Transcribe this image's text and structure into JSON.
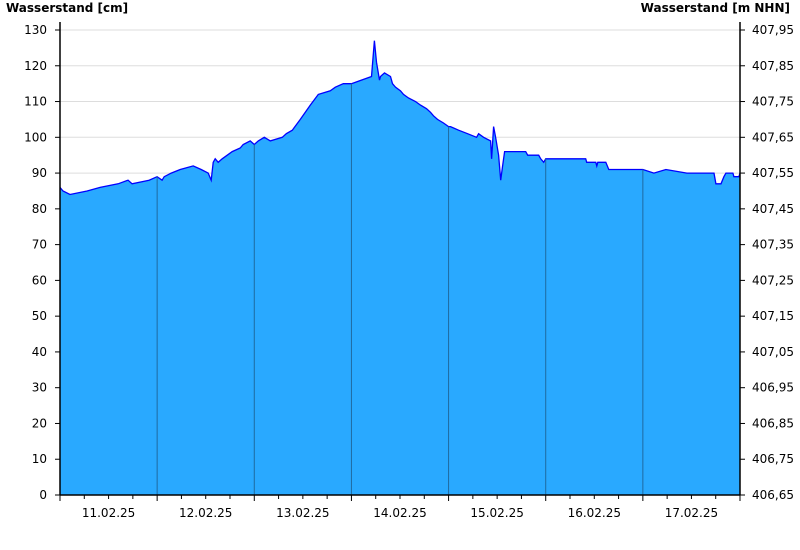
{
  "chart_data": {
    "type": "area",
    "ylabel_left": "Wasserstand [cm]",
    "ylabel_right": "Wasserstand [m NHN]",
    "ylim": [
      0,
      130
    ],
    "yticks": [
      0,
      10,
      20,
      30,
      40,
      50,
      60,
      70,
      80,
      90,
      100,
      110,
      120,
      130
    ],
    "right_offset_m": 406.65,
    "right_ticks": [
      "406,65",
      "406,75",
      "406,85",
      "406,95",
      "407,05",
      "407,15",
      "407,25",
      "407,35",
      "407,45",
      "407,55",
      "407,65",
      "407,75",
      "407,85",
      "407,95"
    ],
    "xlim": [
      "11.02.25 00:00",
      "18.02.25 00:00"
    ],
    "xtick_labels": [
      "11.02.25",
      "12.02.25",
      "13.02.25",
      "14.02.25",
      "15.02.25",
      "16.02.25",
      "17.02.25"
    ],
    "grid": true,
    "colors": {
      "fill": "#29a9ff",
      "line": "#0000ff",
      "day_line": "#1f6aa0",
      "grid": "#dddddd"
    },
    "series": [
      {
        "points": [
          [
            "11.02.25 00:00",
            86
          ],
          [
            "11.02.25 00:45",
            85
          ],
          [
            "11.02.25 02:28",
            84
          ],
          [
            "11.02.25 06:41",
            85
          ],
          [
            "11.02.25 09:54",
            86
          ],
          [
            "11.02.25 14:21",
            87
          ],
          [
            "11.02.25 16:49",
            88
          ],
          [
            "11.02.25 17:49",
            87
          ],
          [
            "11.02.25 22:01",
            88
          ],
          [
            "12.02.25 00:00",
            89
          ],
          [
            "12.02.25 01:14",
            88
          ],
          [
            "12.02.25 01:44",
            89
          ],
          [
            "12.02.25 03:28",
            90
          ],
          [
            "12.02.25 05:42",
            91
          ],
          [
            "12.02.25 08:55",
            92
          ],
          [
            "12.02.25 10:53",
            91
          ],
          [
            "12.02.25 12:37",
            90
          ],
          [
            "12.02.25 13:21",
            88
          ],
          [
            "12.02.25 13:51",
            93
          ],
          [
            "12.02.25 14:21",
            94
          ],
          [
            "12.02.25 15:05",
            93
          ],
          [
            "12.02.25 16:04",
            94
          ],
          [
            "12.02.25 18:32",
            96
          ],
          [
            "12.02.25 20:31",
            97
          ],
          [
            "12.02.25 21:15",
            98
          ],
          [
            "12.02.25 23:00",
            99
          ],
          [
            "13.02.25 00:00",
            98
          ],
          [
            "13.02.25 00:59",
            99
          ],
          [
            "13.02.25 02:28",
            100
          ],
          [
            "13.02.25 03:57",
            99
          ],
          [
            "13.02.25 06:55",
            100
          ],
          [
            "13.02.25 07:54",
            101
          ],
          [
            "13.02.25 09:23",
            102
          ],
          [
            "13.02.25 11:22",
            105
          ],
          [
            "13.02.25 13:50",
            109
          ],
          [
            "13.02.25 15:49",
            112
          ],
          [
            "13.02.25 18:47",
            113
          ],
          [
            "13.02.25 20:01",
            114
          ],
          [
            "13.02.25 21:59",
            115
          ],
          [
            "14.02.25 00:00",
            115
          ],
          [
            "14.02.25 02:28",
            116
          ],
          [
            "14.02.25 04:57",
            117
          ],
          [
            "14.02.25 05:41",
            127
          ],
          [
            "14.02.25 06:11",
            121
          ],
          [
            "14.02.25 06:56",
            116
          ],
          [
            "14.02.25 07:11",
            117
          ],
          [
            "14.02.25 08:10",
            118
          ],
          [
            "14.02.25 09:39",
            117
          ],
          [
            "14.02.25 10:09",
            115
          ],
          [
            "14.02.25 10:53",
            114
          ],
          [
            "14.02.25 12:07",
            113
          ],
          [
            "14.02.25 12:52",
            112
          ],
          [
            "14.02.25 14:06",
            111
          ],
          [
            "14.02.25 15:50",
            110
          ],
          [
            "14.02.25 17:04",
            109
          ],
          [
            "14.02.25 18:33",
            108
          ],
          [
            "14.02.25 19:32",
            107
          ],
          [
            "14.02.25 20:17",
            106
          ],
          [
            "14.02.25 21:16",
            105
          ],
          [
            "14.02.25 22:45",
            104
          ],
          [
            "15.02.25 00:00",
            103
          ],
          [
            "15.02.25 00:29",
            103
          ],
          [
            "15.02.25 02:28",
            102
          ],
          [
            "15.02.25 04:42",
            101
          ],
          [
            "15.02.25 06:55",
            100
          ],
          [
            "15.02.25 07:25",
            101
          ],
          [
            "15.02.25 08:39",
            100
          ],
          [
            "15.02.25 10:23",
            99
          ],
          [
            "15.02.25 10:38",
            94
          ],
          [
            "15.02.25 11:08",
            103
          ],
          [
            "15.02.25 11:37",
            100
          ],
          [
            "15.02.25 12:22",
            95
          ],
          [
            "15.02.25 12:52",
            88
          ],
          [
            "15.02.25 13:21",
            92
          ],
          [
            "15.02.25 13:51",
            96
          ],
          [
            "15.02.25 19:03",
            96
          ],
          [
            "15.02.25 19:33",
            95
          ],
          [
            "15.02.25 22:16",
            95
          ],
          [
            "15.02.25 22:46",
            94
          ],
          [
            "15.02.25 23:30",
            93
          ],
          [
            "16.02.25 00:00",
            94
          ],
          [
            "16.02.25 09:53",
            94
          ],
          [
            "16.02.25 10:08",
            93
          ],
          [
            "16.02.25 12:22",
            93
          ],
          [
            "16.02.25 12:37",
            92
          ],
          [
            "16.02.25 12:52",
            93
          ],
          [
            "16.02.25 14:51",
            93
          ],
          [
            "16.02.25 15:35",
            91
          ],
          [
            "17.02.25 00:00",
            91
          ],
          [
            "17.02.25 02:43",
            90
          ],
          [
            "17.02.25 05:42",
            91
          ],
          [
            "17.02.25 10:53",
            90
          ],
          [
            "17.02.25 17:34",
            90
          ],
          [
            "17.02.25 18:03",
            87
          ],
          [
            "17.02.25 19:18",
            87
          ],
          [
            "17.02.25 20:02",
            89
          ],
          [
            "17.02.25 20:31",
            90
          ],
          [
            "17.02.25 22:15",
            90
          ],
          [
            "17.02.25 22:30",
            89
          ],
          [
            "17.02.25 23:44",
            89
          ],
          [
            "18.02.25 00:00",
            90
          ]
        ]
      }
    ]
  }
}
